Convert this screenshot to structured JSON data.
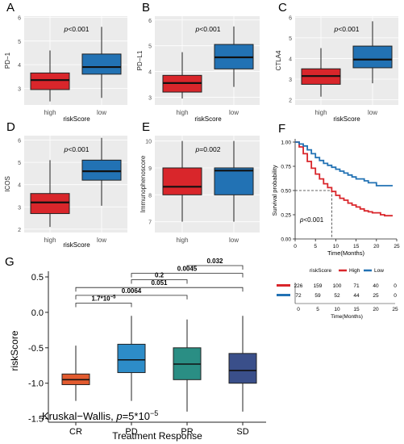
{
  "colors": {
    "high": "#d9262b",
    "low": "#2272b4",
    "cr": "#e25b2f",
    "pd": "#2d8cc8",
    "pr": "#2a8e84",
    "sd": "#3a4f8a",
    "panel_bg": "#ebebeb",
    "grid": "#ffffff"
  },
  "chart_data": [
    {
      "panel": "A",
      "type": "box",
      "ylabel": "PD−1",
      "xlabel": "riskScore",
      "annotation": "p<0.001",
      "ylim": [
        2.3,
        6.05
      ],
      "yticks": [
        3,
        4,
        5,
        6
      ],
      "categories": [
        "high",
        "low"
      ],
      "boxes": [
        {
          "category": "high",
          "min": 2.45,
          "q1": 2.95,
          "median": 3.35,
          "q3": 3.65,
          "max": 4.6
        },
        {
          "category": "low",
          "min": 2.6,
          "q1": 3.6,
          "median": 3.9,
          "q3": 4.45,
          "max": 5.6
        }
      ]
    },
    {
      "panel": "B",
      "type": "box",
      "ylabel": "PD−L1",
      "xlabel": "riskScore",
      "annotation": "p<0.001",
      "ylim": [
        2.7,
        6.15
      ],
      "yticks": [
        3,
        4,
        5,
        6
      ],
      "categories": [
        "high",
        "low"
      ],
      "boxes": [
        {
          "category": "high",
          "min": 2.95,
          "q1": 3.2,
          "median": 3.55,
          "q3": 3.85,
          "max": 4.75
        },
        {
          "category": "low",
          "min": 3.4,
          "q1": 4.1,
          "median": 4.55,
          "q3": 5.05,
          "max": 5.75
        }
      ]
    },
    {
      "panel": "C",
      "type": "box",
      "ylabel": "CTLA4",
      "xlabel": "riskScore",
      "annotation": "p<0.001",
      "ylim": [
        1.75,
        6.05
      ],
      "yticks": [
        2,
        3,
        4,
        5,
        6
      ],
      "categories": [
        "high",
        "low"
      ],
      "boxes": [
        {
          "category": "high",
          "min": 2.15,
          "q1": 2.75,
          "median": 3.15,
          "q3": 3.5,
          "max": 4.5
        },
        {
          "category": "low",
          "min": 2.8,
          "q1": 3.55,
          "median": 3.95,
          "q3": 4.6,
          "max": 5.8
        }
      ]
    },
    {
      "panel": "D",
      "type": "box",
      "ylabel": "ICOS",
      "xlabel": "riskScore",
      "annotation": "p<0.001",
      "ylim": [
        1.85,
        6.2
      ],
      "yticks": [
        2,
        3,
        4,
        5,
        6
      ],
      "categories": [
        "high",
        "low"
      ],
      "boxes": [
        {
          "category": "high",
          "min": 2.1,
          "q1": 2.7,
          "median": 3.2,
          "q3": 3.6,
          "max": 5.1
        },
        {
          "category": "low",
          "min": 3.05,
          "q1": 4.2,
          "median": 4.6,
          "q3": 5.1,
          "max": 6.1
        }
      ]
    },
    {
      "panel": "E",
      "type": "box",
      "ylabel": "Immunophenoscore",
      "xlabel": "",
      "annotation": "p=0.002",
      "ylim": [
        6.6,
        10.2
      ],
      "yticks": [
        7,
        8,
        9,
        10
      ],
      "categories": [
        "high",
        "low"
      ],
      "boxes": [
        {
          "category": "high",
          "min": 7.0,
          "q1": 8.0,
          "median": 8.3,
          "q3": 9.0,
          "max": 10.0
        },
        {
          "category": "low",
          "min": 7.0,
          "q1": 8.0,
          "median": 8.9,
          "q3": 9.0,
          "max": 10.0
        }
      ]
    },
    {
      "panel": "F",
      "type": "line",
      "ylabel": "Survival probability",
      "xlabel": "Time(Months)",
      "annotation": "p<0.001",
      "xlim": [
        0,
        25
      ],
      "ylim": [
        0,
        1
      ],
      "xticks": [
        0,
        5,
        10,
        15,
        20,
        25
      ],
      "yticks": [
        0.0,
        0.25,
        0.5,
        0.75,
        1.0
      ],
      "ytick_labels": [
        "0.00",
        "0.25",
        "0.50",
        "0.75",
        "1.00"
      ],
      "median_line": {
        "y": 0.5,
        "x": 9
      },
      "legend_title": "riskScore",
      "series": [
        {
          "name": "High",
          "x": [
            0,
            1,
            2,
            3,
            4,
            5,
            6,
            7,
            8,
            9,
            10,
            11,
            12,
            13,
            14,
            15,
            16,
            17,
            18,
            19,
            20,
            21,
            22,
            23,
            24
          ],
          "y": [
            1.0,
            0.95,
            0.88,
            0.8,
            0.73,
            0.67,
            0.62,
            0.57,
            0.53,
            0.49,
            0.45,
            0.42,
            0.4,
            0.37,
            0.35,
            0.33,
            0.31,
            0.29,
            0.28,
            0.27,
            0.27,
            0.25,
            0.24,
            0.24,
            0.24
          ]
        },
        {
          "name": "Low",
          "x": [
            0,
            1,
            2,
            3,
            4,
            5,
            6,
            7,
            8,
            9,
            10,
            11,
            12,
            13,
            14,
            15,
            16,
            17,
            18,
            19,
            20,
            21,
            22,
            23,
            24
          ],
          "y": [
            1.0,
            0.98,
            0.96,
            0.92,
            0.88,
            0.84,
            0.81,
            0.78,
            0.76,
            0.74,
            0.72,
            0.7,
            0.68,
            0.66,
            0.64,
            0.62,
            0.62,
            0.6,
            0.58,
            0.58,
            0.55,
            0.55,
            0.55,
            0.55,
            0.55
          ]
        }
      ],
      "risk_table": {
        "xticks": [
          0,
          5,
          10,
          15,
          20,
          25
        ],
        "xlabel": "Time(Months)",
        "rows": [
          {
            "name": "High",
            "counts": [
              "226",
              "159",
              "100",
              "71",
              "40",
              "0"
            ]
          },
          {
            "name": "Low",
            "counts": [
              "72",
              "59",
              "52",
              "44",
              "25",
              "0"
            ]
          }
        ]
      }
    },
    {
      "panel": "G",
      "type": "box",
      "ylabel": "riskScore",
      "xlabel": "Treatment Response",
      "annotation": "Kruskal−Wallis, p=5*10−5",
      "annotation_parts": {
        "prefix": "Kruskal−Wallis, ",
        "p": "p",
        "eq": "=5*10",
        "sup": "−5"
      },
      "ylim": [
        -1.55,
        0.58
      ],
      "yticks": [
        -1.5,
        -1.0,
        -0.5,
        0.0,
        0.5
      ],
      "ytick_labels": [
        "-1.5",
        "-1.0",
        "-0.5",
        "0.0",
        "0.5"
      ],
      "categories": [
        "CR",
        "PD",
        "PR",
        "SD"
      ],
      "boxes": [
        {
          "category": "CR",
          "min": -1.25,
          "q1": -1.02,
          "median": -0.95,
          "q3": -0.87,
          "max": -0.47
        },
        {
          "category": "PD",
          "min": -1.25,
          "q1": -0.85,
          "median": -0.67,
          "q3": -0.45,
          "max": -0.05
        },
        {
          "category": "PR",
          "min": -1.4,
          "q1": -0.95,
          "median": -0.73,
          "q3": -0.5,
          "max": -0.1
        },
        {
          "category": "SD",
          "min": -1.4,
          "q1": -1.0,
          "median": -0.82,
          "q3": -0.58,
          "max": -0.05
        }
      ],
      "comparisons": [
        {
          "from": "CR",
          "to": "PD",
          "y": 0.13,
          "label": "1.7*10",
          "sup": "−5"
        },
        {
          "from": "CR",
          "to": "PR",
          "y": 0.24,
          "label": "0.0064",
          "sup": ""
        },
        {
          "from": "CR",
          "to": "SD",
          "y": 0.35,
          "label": "0.051",
          "sup": ""
        },
        {
          "from": "PD",
          "to": "PR",
          "y": 0.46,
          "label": "0.2",
          "sup": ""
        },
        {
          "from": "PD",
          "to": "SD",
          "y": 0.55,
          "label": "0.0045",
          "sup": ""
        },
        {
          "from": "PR",
          "to": "SD",
          "y": 0.66,
          "label": "0.032",
          "sup": ""
        }
      ]
    }
  ]
}
